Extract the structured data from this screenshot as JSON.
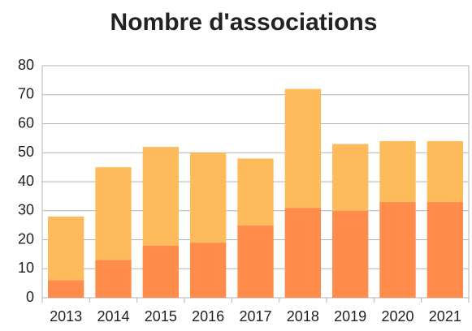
{
  "chart_data": {
    "type": "stacked_bar",
    "title": "Nombre d'associations",
    "categories": [
      "2013",
      "2014",
      "2015",
      "2016",
      "2017",
      "2018",
      "2019",
      "2020",
      "2021"
    ],
    "series": [
      {
        "color": "#ff8c4a",
        "values": [
          6,
          13,
          18,
          19,
          25,
          31,
          30,
          33,
          33
        ]
      },
      {
        "color": "#fdbb5b",
        "values": [
          22,
          32,
          34,
          31,
          23,
          41,
          23,
          21,
          21
        ]
      }
    ],
    "ylim": [
      0,
      80
    ],
    "yticks": [
      0,
      10,
      20,
      30,
      40,
      50,
      60,
      70,
      80
    ],
    "grid": true
  }
}
